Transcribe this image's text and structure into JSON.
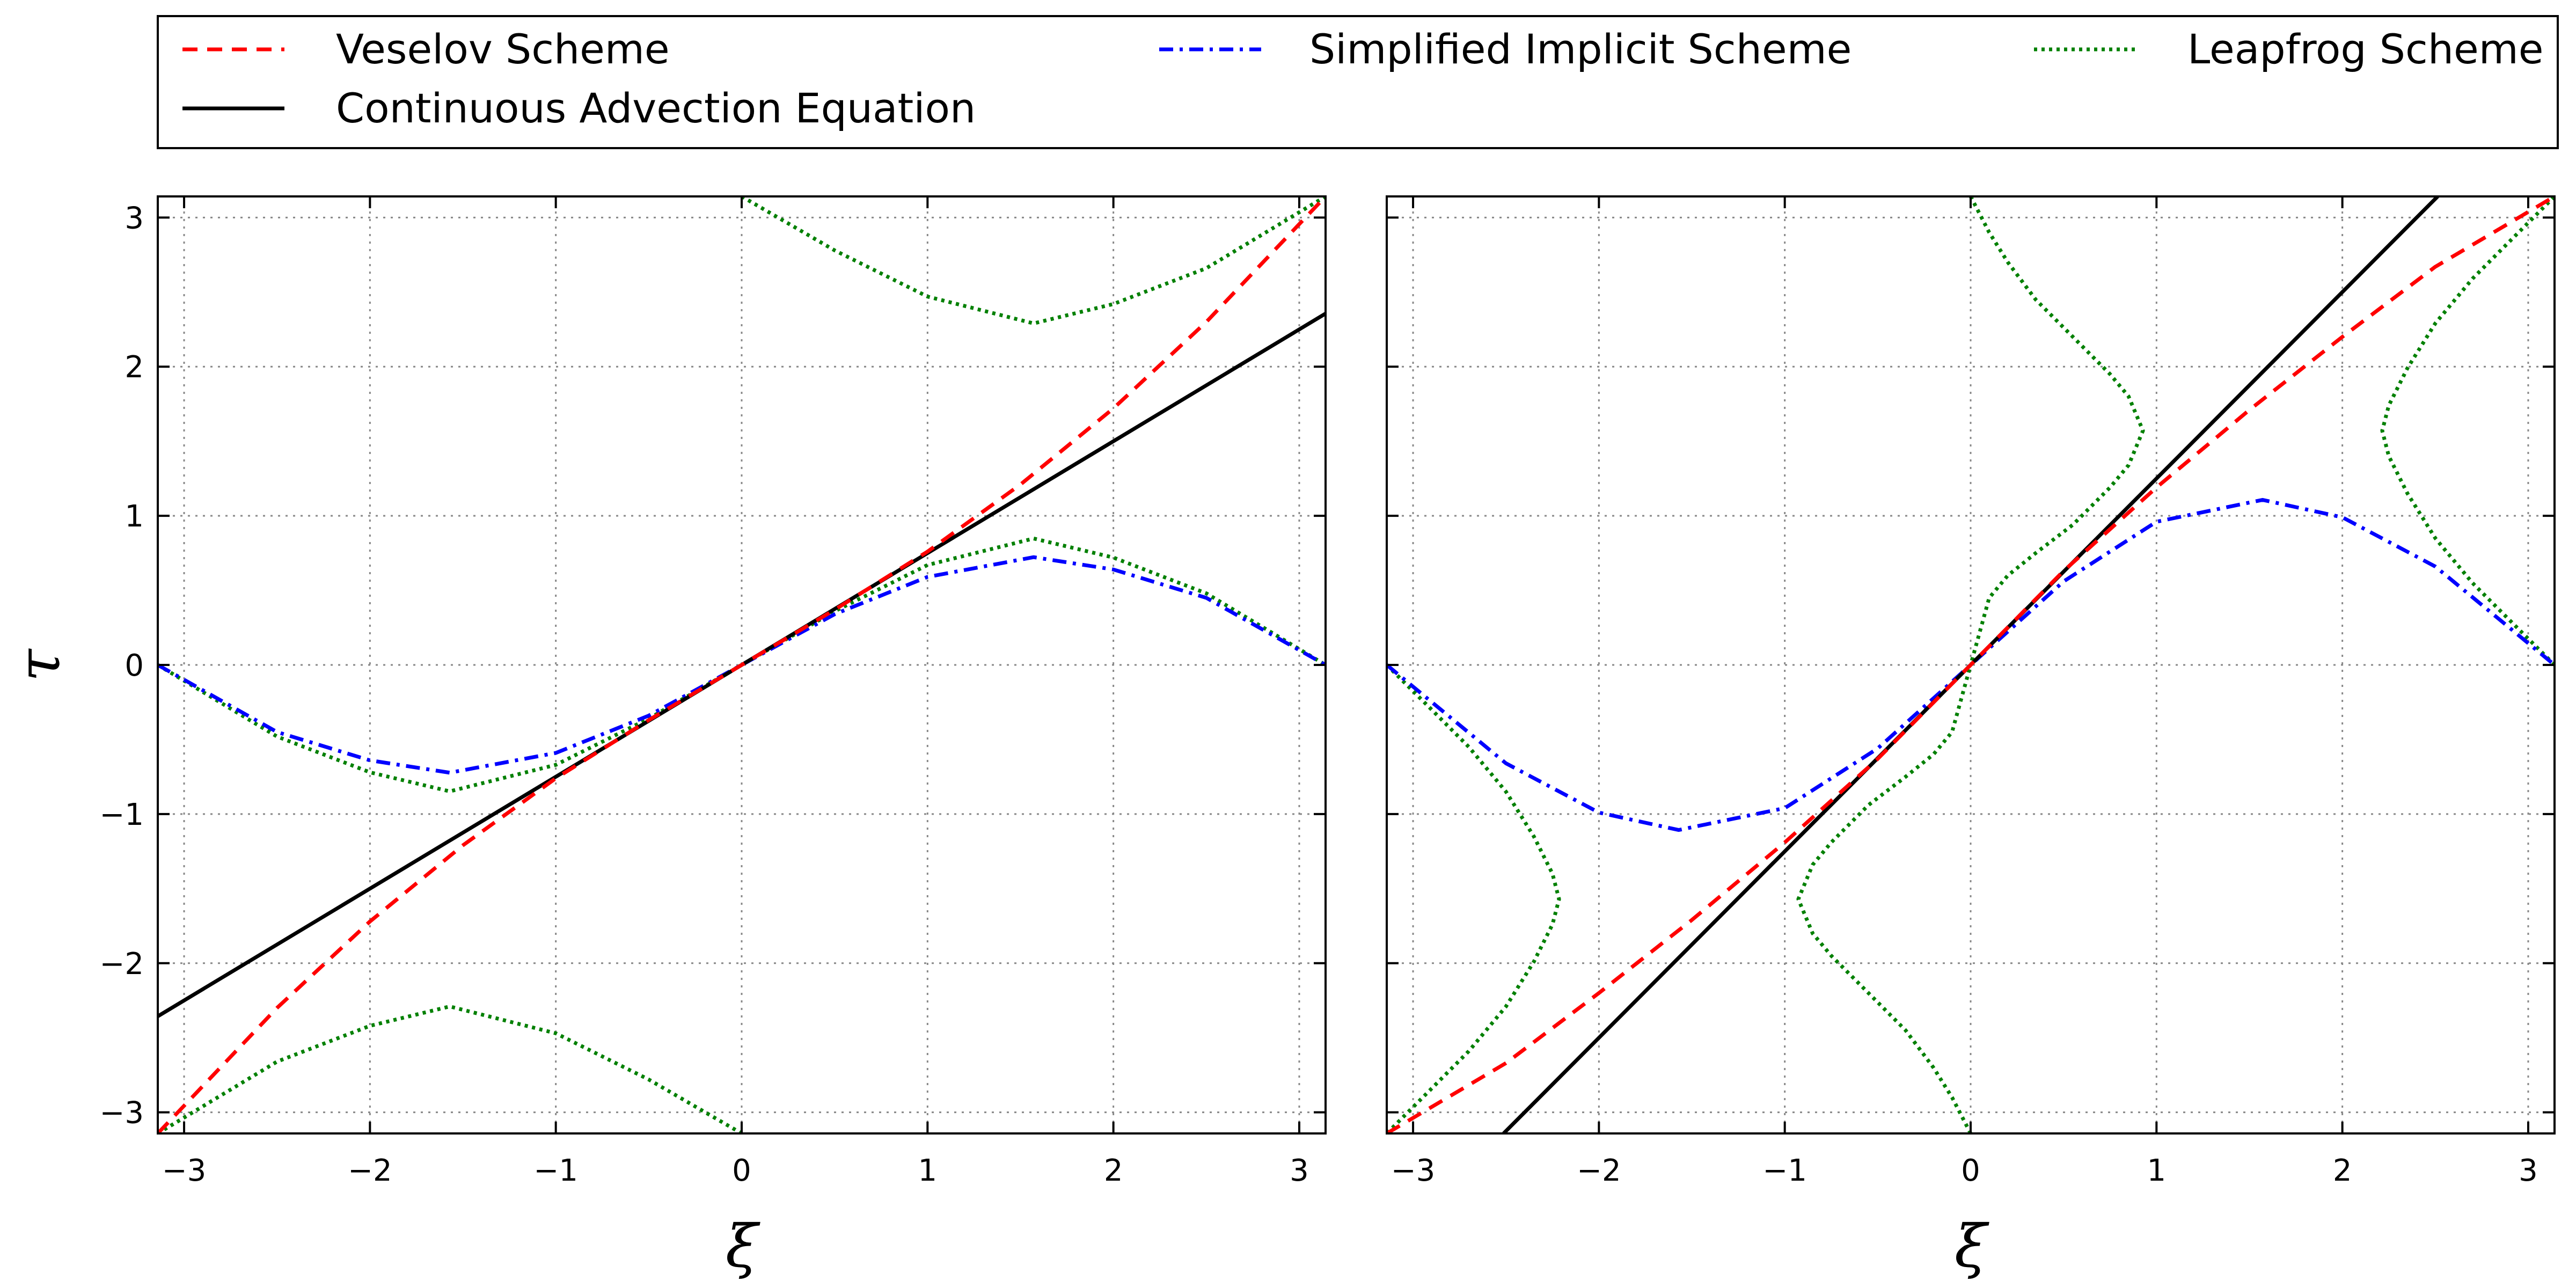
{
  "chart_data": {
    "type": "line",
    "legend": {
      "location": "top",
      "columns": 3,
      "entries": [
        {
          "series": "veselov",
          "label": "Veselov Scheme"
        },
        {
          "series": "implicit",
          "label": "Simplified Implicit Scheme"
        },
        {
          "series": "leapfrog",
          "label": "Leapfrog Scheme"
        },
        {
          "series": "continuous",
          "label": "Continuous Advection Equation"
        }
      ]
    },
    "series_styles": {
      "veselov": {
        "color": "#ff0000",
        "dash": "dashed"
      },
      "implicit": {
        "color": "#0000ff",
        "dash": "dashdot"
      },
      "leapfrog": {
        "color": "#008000",
        "dash": "dotted"
      },
      "continuous": {
        "color": "#000000",
        "dash": "solid"
      }
    },
    "panels": [
      {
        "name": "left",
        "courant_number": 0.75,
        "xlabel": "ξ",
        "ylabel": "τ",
        "xlim": [
          -3.1416,
          3.1416
        ],
        "ylim": [
          -3.1416,
          3.1416
        ],
        "xticks": [
          -3,
          -2,
          -1,
          0,
          1,
          2,
          3
        ],
        "yticks": [
          -3,
          -2,
          -1,
          0,
          1,
          2,
          3
        ],
        "xtick_labels": [
          "−3",
          "−2",
          "−1",
          "0",
          "1",
          "2",
          "3"
        ],
        "ytick_labels": [
          "−3",
          "−2",
          "−1",
          "0",
          "1",
          "2",
          "3"
        ],
        "grid": true,
        "series": {
          "continuous": {
            "x": [
              -3.1416,
              3.1416
            ],
            "y": [
              -2.356,
              2.356
            ]
          },
          "veselov": {
            "x": [
              -3.1416,
              -2.5,
              -2.0,
              -1.5,
              -1.0,
              -0.5,
              0,
              0.5,
              1.0,
              1.5,
              2.0,
              2.5,
              3.1416
            ],
            "y": [
              -3.1416,
              -2.3,
              -1.72,
              -1.21,
              -0.76,
              -0.37,
              0,
              0.37,
              0.76,
              1.21,
              1.72,
              2.3,
              3.1416
            ]
          },
          "implicit": {
            "x": [
              -3.1416,
              -2.5,
              -2.0,
              -1.5708,
              -1.0,
              -0.5,
              0,
              0.5,
              1.0,
              1.5708,
              2.0,
              2.5,
              3.1416
            ],
            "y": [
              0,
              -0.45,
              -0.64,
              -0.7227,
              -0.59,
              -0.34,
              0,
              0.34,
              0.59,
              0.7227,
              0.64,
              0.45,
              0
            ]
          },
          "leapfrog_branches": [
            {
              "x": [
                -3.1416,
                -2.5,
                -2.0,
                -1.5708,
                -1.0,
                -0.5,
                0,
                0.5,
                1.0,
                1.5708,
                2.0,
                2.5,
                3.1416
              ],
              "y": [
                0,
                -0.48,
                -0.72,
                -0.848,
                -0.67,
                -0.36,
                0,
                0.36,
                0.67,
                0.848,
                0.72,
                0.48,
                0
              ]
            },
            {
              "x": [
                0,
                0.5,
                1.0,
                1.5708,
                2.0,
                2.5,
                3.1416
              ],
              "y": [
                3.1416,
                2.78,
                2.47,
                2.29,
                2.42,
                2.66,
                3.1416
              ]
            },
            {
              "x": [
                -3.1416,
                -2.5,
                -2.0,
                -1.5708,
                -1.0,
                -0.5,
                0
              ],
              "y": [
                -3.1416,
                -2.66,
                -2.42,
                -2.29,
                -2.47,
                -2.78,
                -3.1416
              ]
            }
          ]
        }
      },
      {
        "name": "right",
        "courant_number": 1.25,
        "xlabel": "ξ",
        "ylabel": "",
        "xlim": [
          -3.1416,
          3.1416
        ],
        "ylim": [
          -3.1416,
          3.1416
        ],
        "xticks": [
          -3,
          -2,
          -1,
          0,
          1,
          2,
          3
        ],
        "yticks": [
          -3,
          -2,
          -1,
          0,
          1,
          2,
          3
        ],
        "xtick_labels": [
          "−3",
          "−2",
          "−1",
          "0",
          "1",
          "2",
          "3"
        ],
        "ytick_labels": [],
        "grid": true,
        "series": {
          "continuous": {
            "x": [
              -2.513,
              2.513
            ],
            "y": [
              -3.1416,
              3.1416
            ]
          },
          "veselov": {
            "x": [
              -3.1416,
              -2.5,
              -2.0,
              -1.5,
              -1.0,
              -0.5,
              0,
              0.5,
              1.0,
              1.5,
              2.0,
              2.5,
              3.1416
            ],
            "y": [
              -3.1416,
              -2.67,
              -2.2,
              -1.71,
              -1.19,
              -0.63,
              0,
              0.63,
              1.19,
              1.71,
              2.2,
              2.67,
              3.1416
            ]
          },
          "implicit": {
            "x": [
              -3.1416,
              -2.5,
              -2.0,
              -1.5708,
              -1.0,
              -0.5,
              0,
              0.5,
              1.0,
              1.5708,
              2.0,
              2.5,
              3.1416
            ],
            "y": [
              0,
              -0.66,
              -0.99,
              -1.1071,
              -0.96,
              -0.56,
              0,
              0.56,
              0.96,
              1.1071,
              0.99,
              0.66,
              0
            ]
          },
          "leapfrog_branches": [
            {
              "x": [
                -3.1416,
                -2.9,
                -2.7,
                -2.5,
                -2.35,
                -2.25,
                -2.2143,
                -2.25,
                -2.35,
                -2.5,
                -2.7,
                -2.9,
                -3.1416
              ],
              "y": [
                0,
                -0.3,
                -0.55,
                -0.85,
                -1.15,
                -1.4,
                -1.5708,
                -1.74,
                -1.99,
                -2.29,
                -2.59,
                -2.84,
                -3.1416
              ]
            },
            {
              "x": [
                0,
                -0.1,
                -0.2,
                -0.35,
                -0.55,
                -0.75,
                -0.85,
                -0.9273,
                -0.85,
                -0.75,
                -0.55,
                -0.35,
                -0.2,
                -0.1,
                0
              ],
              "y": [
                -3.1416,
                -2.9,
                -2.7,
                -2.45,
                -2.2,
                -1.95,
                -1.8,
                -1.5708,
                -1.34,
                -1.19,
                -0.94,
                -0.75,
                -0.6,
                -0.45,
                0
              ]
            },
            {
              "x": [
                0,
                0.1,
                0.2,
                0.35,
                0.55,
                0.75,
                0.85,
                0.9273,
                0.85,
                0.75,
                0.55,
                0.35,
                0.2,
                0.1,
                0
              ],
              "y": [
                3.1416,
                2.9,
                2.7,
                2.45,
                2.2,
                1.95,
                1.8,
                1.5708,
                1.34,
                1.19,
                0.94,
                0.75,
                0.6,
                0.45,
                0
              ]
            },
            {
              "x": [
                3.1416,
                2.9,
                2.7,
                2.5,
                2.35,
                2.25,
                2.2143,
                2.25,
                2.35,
                2.5,
                2.7,
                2.9,
                3.1416
              ],
              "y": [
                0,
                0.3,
                0.55,
                0.85,
                1.15,
                1.4,
                1.5708,
                1.74,
                1.99,
                2.29,
                2.59,
                2.84,
                3.1416
              ]
            }
          ]
        }
      }
    ]
  }
}
